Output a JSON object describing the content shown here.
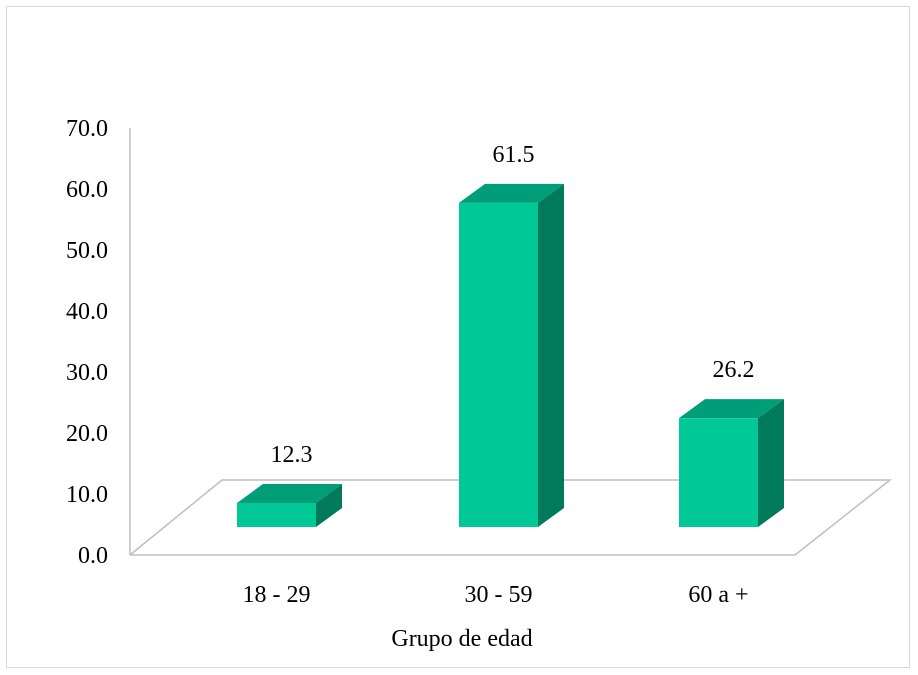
{
  "chart_data": {
    "type": "bar",
    "title": "",
    "xlabel": "Grupo de edad",
    "ylabel": "",
    "categories": [
      "18 - 29",
      "30 - 59",
      "60 a +"
    ],
    "values": [
      12.3,
      61.5,
      26.2
    ],
    "data_labels": [
      "12.3",
      "61.5",
      "26.2"
    ],
    "ylim": [
      0,
      70
    ],
    "yticks": [
      "0.0",
      "10.0",
      "20.0",
      "30.0",
      "40.0",
      "50.0",
      "60.0",
      "70.0"
    ],
    "grid": false,
    "legend": "none",
    "style": "3d-column",
    "colors": {
      "front": "#00c896",
      "side": "#007a5a",
      "top": "#009e78",
      "axis": "#bfbfbf",
      "border": "#d9d9d9"
    }
  }
}
